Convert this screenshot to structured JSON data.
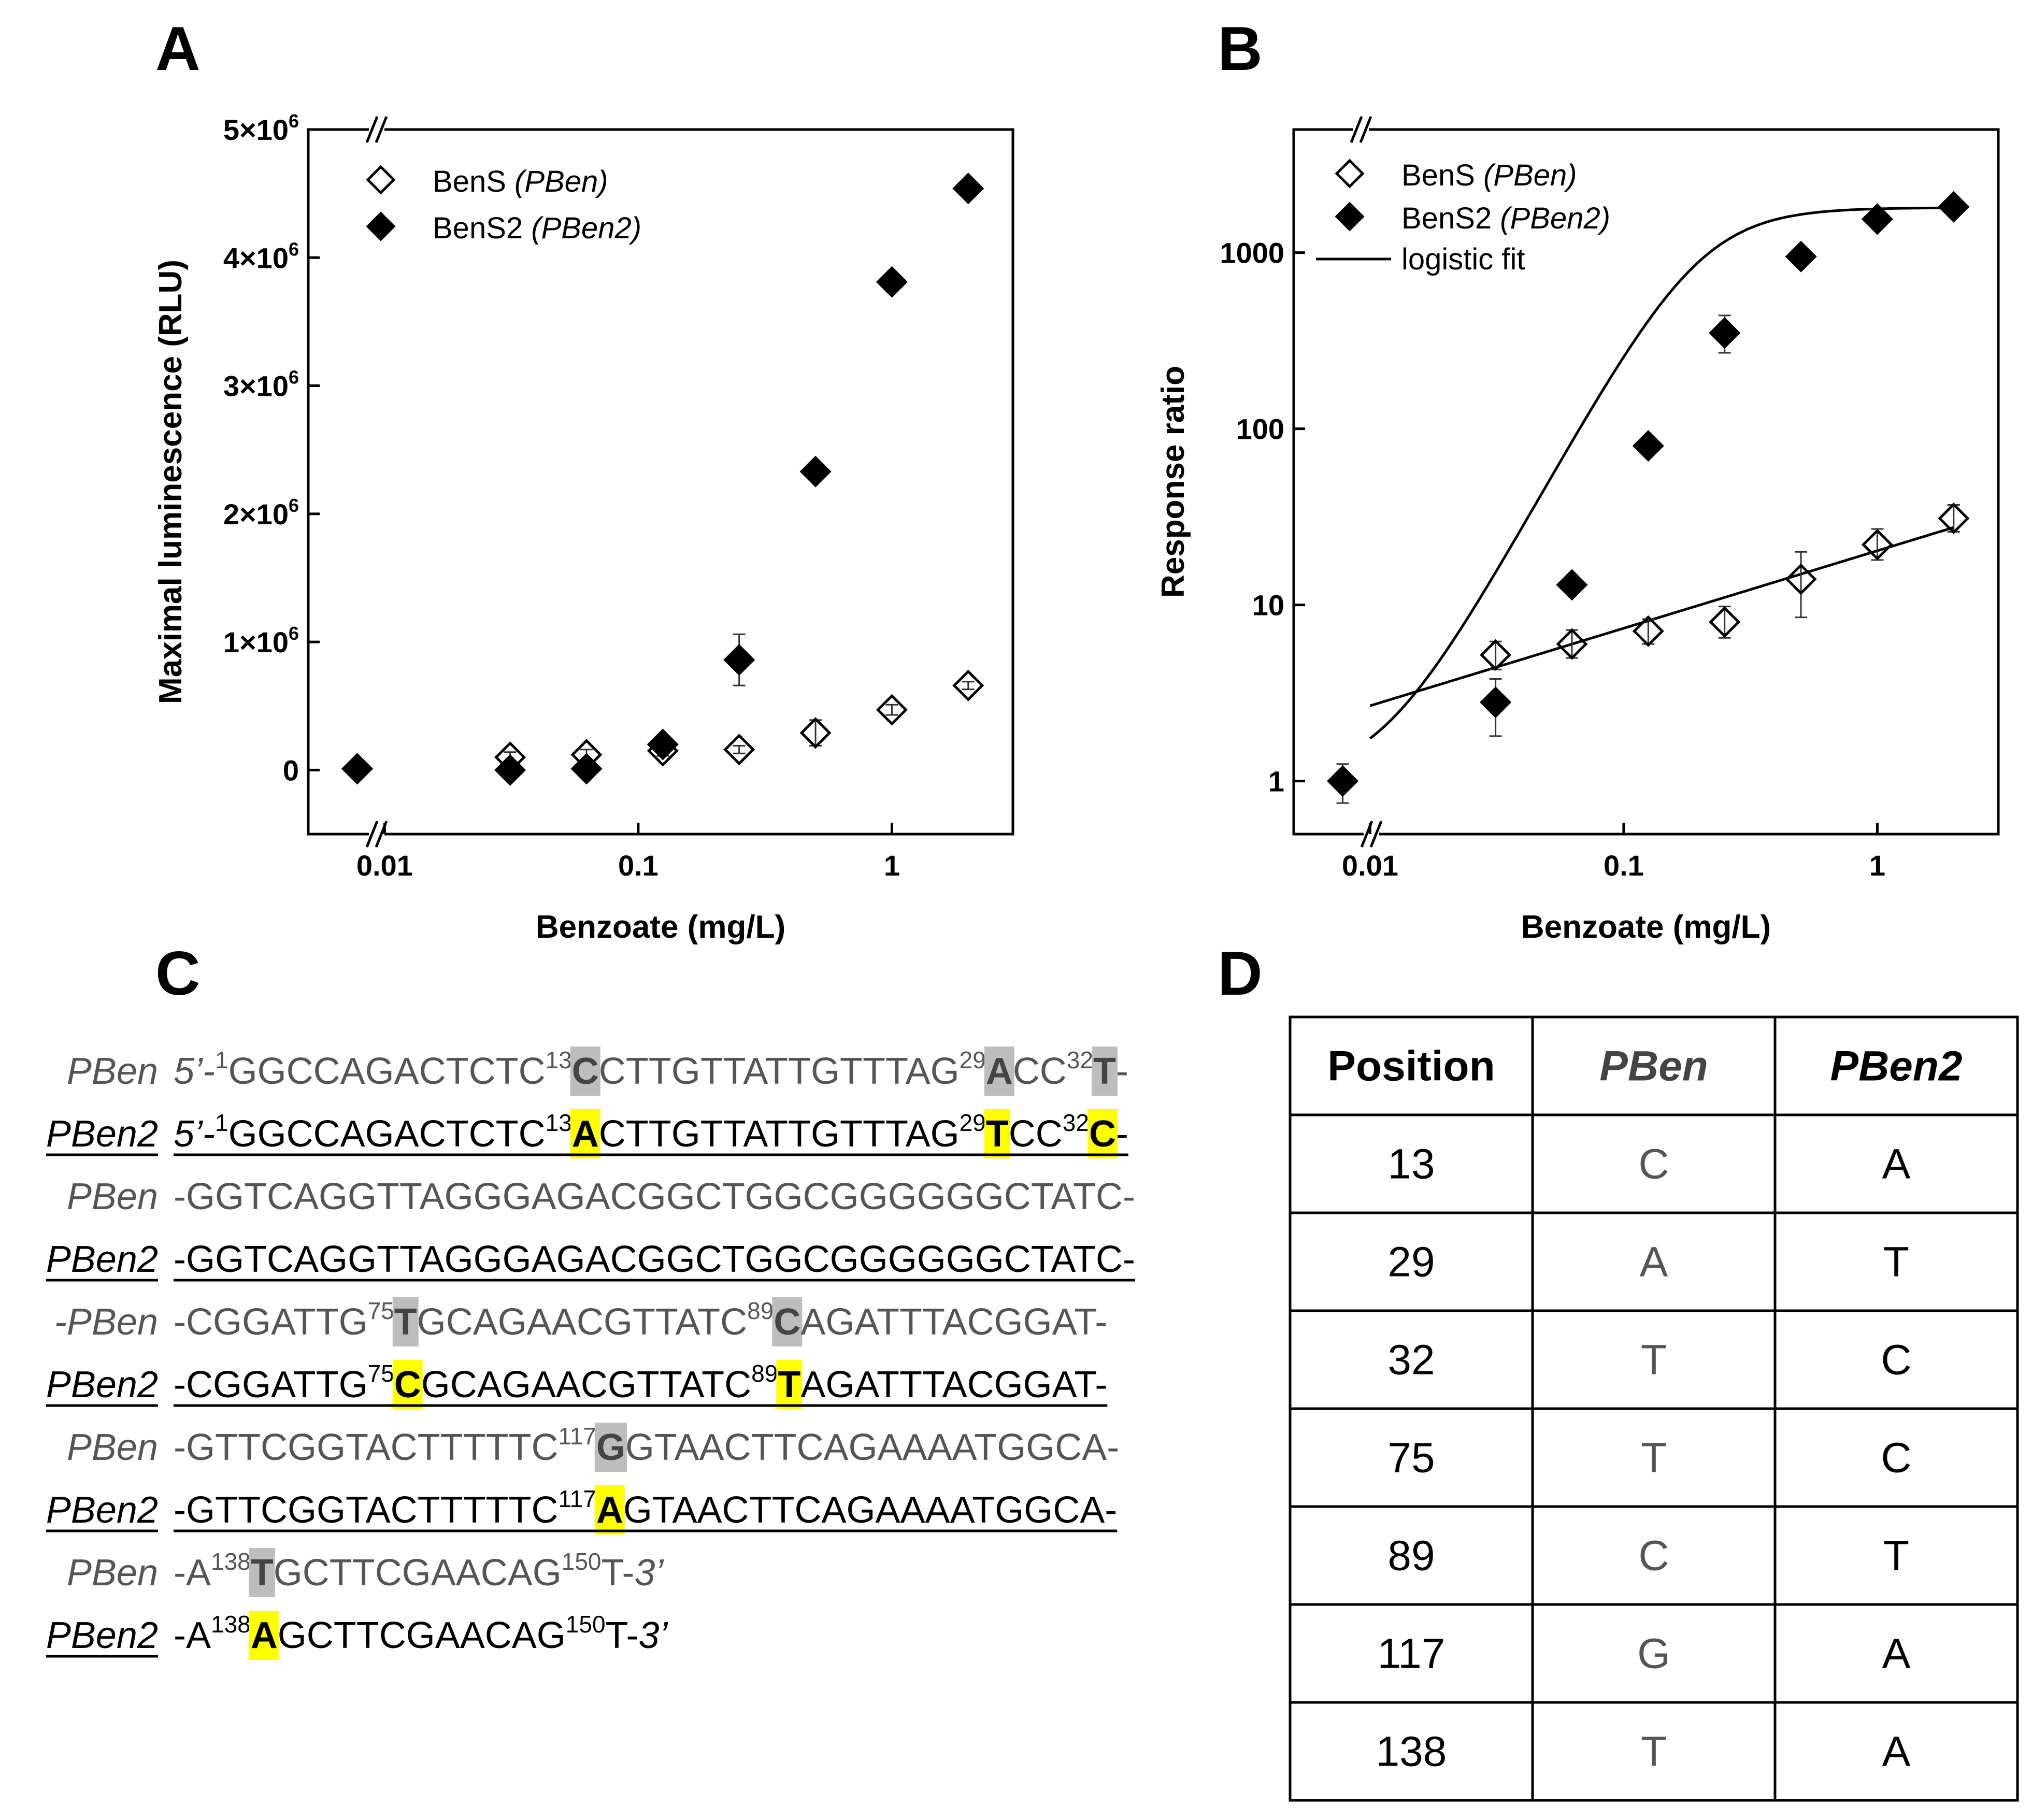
{
  "panels": {
    "A": "A",
    "B": "B",
    "C": "C",
    "D": "D"
  },
  "chart_data": [
    {
      "type": "scatter",
      "panel": "A",
      "xlabel": "Benzoate (mg/L)",
      "ylabel": "Maximal luminescence (RLU)",
      "xscale": "log",
      "xlim": [
        0.005,
        3
      ],
      "ylim": [
        -500000,
        5000000
      ],
      "x_ticks": [
        {
          "v": 0.01,
          "label": "0.01"
        },
        {
          "v": 0.1,
          "label": "0.1"
        },
        {
          "v": 1,
          "label": "1"
        }
      ],
      "y_ticks": [
        {
          "v": 0,
          "base": "0",
          "exp": ""
        },
        {
          "v": 1000000,
          "base": "1×10",
          "exp": "6"
        },
        {
          "v": 2000000,
          "base": "2×10",
          "exp": "6"
        },
        {
          "v": 3000000,
          "base": "3×10",
          "exp": "6"
        },
        {
          "v": 4000000,
          "base": "4×10",
          "exp": "6"
        },
        {
          "v": 5000000,
          "base": "5×10",
          "exp": "6"
        }
      ],
      "axis_break": "x-axis break near origin",
      "legend_position": "top-left",
      "series": [
        {
          "name": "BenS",
          "name_italic": "(PBen)",
          "marker": "open-diamond",
          "x": [
            0.0078,
            0.03125,
            0.0625,
            0.125,
            0.25,
            0.5,
            1,
            2
          ],
          "y": [
            10000,
            100000,
            120000,
            150000,
            160000,
            290000,
            470000,
            660000
          ],
          "err": [
            20000,
            40000,
            40000,
            40000,
            30000,
            100000,
            40000,
            30000
          ]
        },
        {
          "name": "BenS2",
          "name_italic": "(PBen2)",
          "marker": "filled-diamond",
          "x": [
            0.0078,
            0.03125,
            0.0625,
            0.125,
            0.25,
            0.5,
            1,
            2
          ],
          "y": [
            10000,
            0,
            10000,
            200000,
            860000,
            2330000,
            3810000,
            4540000
          ],
          "err": [
            15000,
            15000,
            15000,
            30000,
            200000,
            40000,
            60000,
            30000
          ]
        }
      ]
    },
    {
      "type": "scatter",
      "panel": "B",
      "xlabel": "Benzoate (mg/L)",
      "ylabel": "Response ratio",
      "xscale": "log",
      "yscale": "log",
      "xlim": [
        0.005,
        3
      ],
      "ylim": [
        0.5,
        5000
      ],
      "x_ticks": [
        {
          "v": 0.01,
          "label": "0.01"
        },
        {
          "v": 0.1,
          "label": "0.1"
        },
        {
          "v": 1,
          "label": "1"
        }
      ],
      "y_ticks": [
        {
          "v": 1,
          "label": "1"
        },
        {
          "v": 10,
          "label": "10"
        },
        {
          "v": 100,
          "label": "100"
        },
        {
          "v": 1000,
          "label": "1000"
        }
      ],
      "legend_position": "top-left",
      "fit_label": "logistic fit",
      "series": [
        {
          "name": "BenS",
          "name_italic": "(PBen)",
          "marker": "open-diamond",
          "x": [
            0.03125,
            0.0625,
            0.125,
            0.25,
            0.5,
            1,
            2
          ],
          "y": [
            5.2,
            6.0,
            7.1,
            8.0,
            14,
            22,
            31
          ],
          "err_lo": [
            4.3,
            5.0,
            6.0,
            6.5,
            8.5,
            18,
            26
          ],
          "err_hi": [
            6.2,
            7.2,
            8.3,
            9.8,
            20,
            27,
            37
          ]
        },
        {
          "name": "BenS2",
          "name_italic": "(PBen2)",
          "marker": "filled-diamond",
          "x": [
            0.0078,
            0.03125,
            0.0625,
            0.125,
            0.25,
            0.5,
            1,
            2
          ],
          "y": [
            1.0,
            2.8,
            13,
            80,
            350,
            950,
            1550,
            1820
          ],
          "err_lo": [
            0.75,
            1.8,
            12,
            74,
            270,
            900,
            1480,
            1780
          ],
          "err_hi": [
            1.25,
            3.8,
            14,
            86,
            440,
            1000,
            1620,
            1860
          ]
        }
      ],
      "fits": [
        {
          "series": "BenS",
          "kind": "power",
          "a": 20.3,
          "b": 0.44
        },
        {
          "series": "BenS2",
          "kind": "logistic",
          "bottom": 1,
          "top": 1800,
          "x0": 0.2,
          "p": 2.6
        }
      ]
    }
  ],
  "sequence": {
    "rows": [
      {
        "label": "PBen",
        "label_style": "plain",
        "prefix": "",
        "underline": false,
        "segments": [
          {
            "t": "5’-",
            "it": true
          },
          {
            "t": "1",
            "sup": true
          },
          {
            "t": "GGCCAGACTCTC"
          },
          {
            "t": "13",
            "sup": true
          },
          {
            "t": "C",
            "hl": "gray"
          },
          {
            "t": "CTTGTTATTGTTTAG"
          },
          {
            "t": "29",
            "sup": true
          },
          {
            "t": "A",
            "hl": "gray"
          },
          {
            "t": "CC"
          },
          {
            "t": "32",
            "sup": true
          },
          {
            "t": "T",
            "hl": "gray"
          },
          {
            "t": "-"
          }
        ]
      },
      {
        "label": "PBen2",
        "label_style": "bold",
        "prefix": "",
        "underline": true,
        "segments": [
          {
            "t": "5’-",
            "it": true
          },
          {
            "t": "1",
            "sup": true
          },
          {
            "t": "GGCCAGACTCTC"
          },
          {
            "t": "13",
            "sup": true
          },
          {
            "t": "A",
            "hl": "yellow"
          },
          {
            "t": "CTTGTTATTGTTTAG"
          },
          {
            "t": "29",
            "sup": true
          },
          {
            "t": "T",
            "hl": "yellow"
          },
          {
            "t": "CC"
          },
          {
            "t": "32",
            "sup": true
          },
          {
            "t": "C",
            "hl": "yellow"
          },
          {
            "t": "-"
          }
        ]
      },
      {
        "label": "PBen",
        "label_style": "plain",
        "prefix": "",
        "underline": false,
        "segments": [
          {
            "t": "-GGTCAGGTTAGGGAGACGGCTGGCGGGGGGCTATC-"
          }
        ]
      },
      {
        "label": "PBen2",
        "label_style": "bold",
        "prefix": "",
        "underline": true,
        "segments": [
          {
            "t": "-GGTCAGGTTAGGGAGACGGCTGGCGGGGGGCTATC-"
          }
        ]
      },
      {
        "label": "PBen",
        "label_style": "plain",
        "prefix": "-",
        "underline": false,
        "segments": [
          {
            "t": "-CGGATTG"
          },
          {
            "t": "75",
            "sup": true
          },
          {
            "t": "T",
            "hl": "gray"
          },
          {
            "t": "GCAGAACGTTATC"
          },
          {
            "t": "89",
            "sup": true
          },
          {
            "t": "C",
            "hl": "gray"
          },
          {
            "t": "AGATTTACGGAT-"
          }
        ]
      },
      {
        "label": "PBen2",
        "label_style": "bold",
        "prefix": "",
        "underline": true,
        "segments": [
          {
            "t": "-CGGATTG"
          },
          {
            "t": "75",
            "sup": true
          },
          {
            "t": "C",
            "hl": "yellow"
          },
          {
            "t": "GCAGAACGTTATC"
          },
          {
            "t": "89",
            "sup": true
          },
          {
            "t": "T",
            "hl": "yellow"
          },
          {
            "t": "AGATTTACGGAT-"
          }
        ]
      },
      {
        "label": "PBen",
        "label_style": "plain",
        "prefix": "",
        "underline": false,
        "segments": [
          {
            "t": "-GTTCGGTACTTTTTC"
          },
          {
            "t": "117",
            "sup": true
          },
          {
            "t": "G",
            "hl": "gray"
          },
          {
            "t": "GTAACTTCAGAAAATGGCA-"
          }
        ]
      },
      {
        "label": "PBen2",
        "label_style": "bold",
        "prefix": "",
        "underline": true,
        "segments": [
          {
            "t": "-GTTCGGTACTTTTTC"
          },
          {
            "t": "117",
            "sup": true
          },
          {
            "t": "A",
            "hl": "yellow"
          },
          {
            "t": "GTAACTTCAGAAAATGGCA-"
          }
        ]
      },
      {
        "label": "PBen",
        "label_style": "plain",
        "prefix": "",
        "underline": false,
        "segments": [
          {
            "t": "-A"
          },
          {
            "t": "138",
            "sup": true
          },
          {
            "t": "T",
            "hl": "gray"
          },
          {
            "t": "GCTTCGAACAG"
          },
          {
            "t": "150",
            "sup": true
          },
          {
            "t": "T-"
          },
          {
            "t": "3’",
            "it": true
          }
        ]
      },
      {
        "label": "PBen2",
        "label_style": "bold",
        "prefix": "",
        "underline": false,
        "segments": [
          {
            "t": "-A"
          },
          {
            "t": "138",
            "sup": true
          },
          {
            "t": "A",
            "hl": "yellow"
          },
          {
            "t": "GCTTCGAACAG"
          },
          {
            "t": "150",
            "sup": true
          },
          {
            "t": "T-"
          },
          {
            "t": "3’",
            "it": true
          }
        ]
      }
    ]
  },
  "table": {
    "headers": [
      "Position",
      "PBen",
      "PBen2"
    ],
    "rows": [
      [
        "13",
        "C",
        "A"
      ],
      [
        "29",
        "A",
        "T"
      ],
      [
        "32",
        "T",
        "C"
      ],
      [
        "75",
        "T",
        "C"
      ],
      [
        "89",
        "C",
        "T"
      ],
      [
        "117",
        "G",
        "A"
      ],
      [
        "138",
        "T",
        "A"
      ]
    ]
  },
  "colors": {
    "ink": "#000000",
    "seq_gray_text": "#555555",
    "highlight_gray": "#bdbdbd",
    "highlight_yellow": "#ffff00"
  }
}
